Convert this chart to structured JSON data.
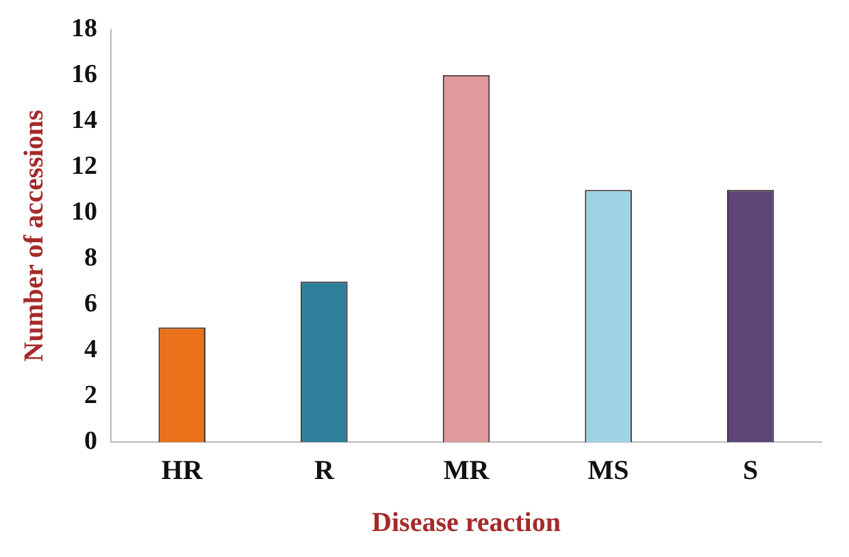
{
  "chart_data": {
    "type": "bar",
    "xlabel": "Disease reaction",
    "ylabel": "Number of accessions",
    "categories": [
      "HR",
      "R",
      "MR",
      "MS",
      "S"
    ],
    "values": [
      5,
      7,
      16,
      11,
      11
    ],
    "colors": [
      "#e8711a",
      "#2e7f9a",
      "#e09a9c",
      "#9ed3e3",
      "#5e4577"
    ],
    "ylim": [
      0,
      18
    ],
    "yticks": [
      0,
      2,
      4,
      6,
      8,
      10,
      12,
      14,
      16,
      18
    ],
    "grid": false,
    "legend": false
  }
}
